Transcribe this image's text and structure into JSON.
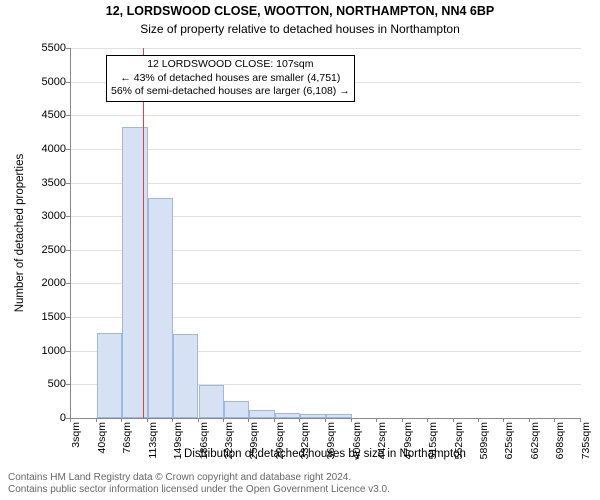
{
  "chart": {
    "type": "histogram",
    "title_main": "12, LORDSWOOD CLOSE, WOOTTON, NORTHAMPTON, NN4 6BP",
    "title_sub": "Size of property relative to detached houses in Northampton",
    "ylabel": "Number of detached properties",
    "xlabel": "Distribution of detached houses by size in Northampton",
    "y_ticks": [
      0,
      500,
      1000,
      1500,
      2000,
      2500,
      3000,
      3500,
      4000,
      4500,
      5000,
      5500
    ],
    "y_max": 5500,
    "x_ticks": [
      "3sqm",
      "40sqm",
      "76sqm",
      "113sqm",
      "149sqm",
      "186sqm",
      "223sqm",
      "259sqm",
      "296sqm",
      "332sqm",
      "369sqm",
      "406sqm",
      "442sqm",
      "479sqm",
      "515sqm",
      "552sqm",
      "589sqm",
      "625sqm",
      "662sqm",
      "698sqm",
      "735sqm"
    ],
    "x_tick_values": [
      3,
      40,
      76,
      113,
      149,
      186,
      223,
      259,
      296,
      332,
      369,
      406,
      442,
      479,
      515,
      552,
      589,
      625,
      662,
      698,
      735
    ],
    "x_min": 3,
    "x_max": 735,
    "bars": [
      {
        "x_start": 40,
        "x_end": 76,
        "value": 1260
      },
      {
        "x_start": 76,
        "x_end": 113,
        "value": 4320
      },
      {
        "x_start": 113,
        "x_end": 149,
        "value": 3270
      },
      {
        "x_start": 149,
        "x_end": 186,
        "value": 1250
      },
      {
        "x_start": 186,
        "x_end": 223,
        "value": 490
      },
      {
        "x_start": 223,
        "x_end": 259,
        "value": 250
      },
      {
        "x_start": 259,
        "x_end": 296,
        "value": 120
      },
      {
        "x_start": 296,
        "x_end": 332,
        "value": 80
      },
      {
        "x_start": 332,
        "x_end": 369,
        "value": 60
      },
      {
        "x_start": 369,
        "x_end": 406,
        "value": 60
      }
    ],
    "marker_x": 107,
    "bar_fill": "#d6e1f3",
    "bar_stroke": "#9fb8dd",
    "marker_color": "#e04040",
    "grid_color": "#e0e0e0",
    "axis_color": "#888888",
    "background_color": "#ffffff",
    "tick_fontsize": 11,
    "label_fontsize": 11.5,
    "title_fontsize": 12.5,
    "annotation": {
      "line1": "12 LORDSWOOD CLOSE: 107sqm",
      "line2": "← 43% of detached houses are smaller (4,751)",
      "line3": "56% of semi-detached houses are larger (6,108) →"
    }
  },
  "footer": {
    "line1": "Contains HM Land Registry data © Crown copyright and database right 2024.",
    "line2": "Contains public sector information licensed under the Open Government Licence v3.0."
  }
}
